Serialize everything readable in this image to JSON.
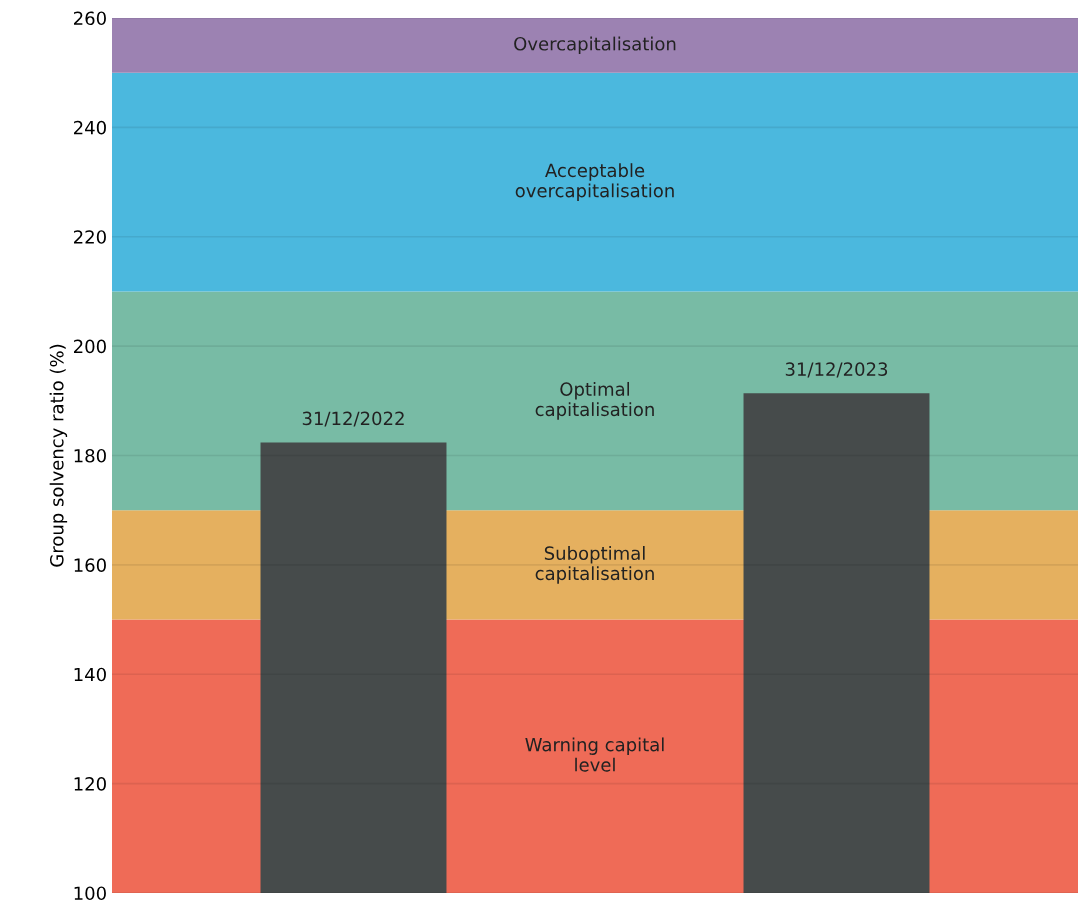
{
  "chart_data": {
    "type": "bar",
    "ylabel": "Group solvency ratio (%)",
    "categories": [
      "31/12/2022",
      "31/12/2023"
    ],
    "values": [
      182.4,
      191.4
    ],
    "color": "#464b4b",
    "ylim": [
      100,
      260
    ],
    "yticks": [
      100,
      120,
      140,
      160,
      180,
      200,
      220,
      240,
      260
    ],
    "grid": "y",
    "tick_labels": "y",
    "bands": [
      {
        "axis": "y",
        "from": 100,
        "to": 150,
        "label": "Warning capital\nlevel",
        "color": "#ef6b57"
      },
      {
        "axis": "y",
        "from": 150,
        "to": 170,
        "label": "Suboptimal\ncapitalisation",
        "color": "#e5b05f"
      },
      {
        "axis": "y",
        "from": 170,
        "to": 210,
        "label": "Optimal\ncapitalisation",
        "color": "#78bba5"
      },
      {
        "axis": "y",
        "from": 210,
        "to": 250,
        "label": "Acceptable\novercapitalisation",
        "color": "#4bb8de"
      },
      {
        "axis": "y",
        "from": 250,
        "to": 260,
        "label": "Overcapitalisation",
        "color": "#9c82b2"
      }
    ]
  }
}
